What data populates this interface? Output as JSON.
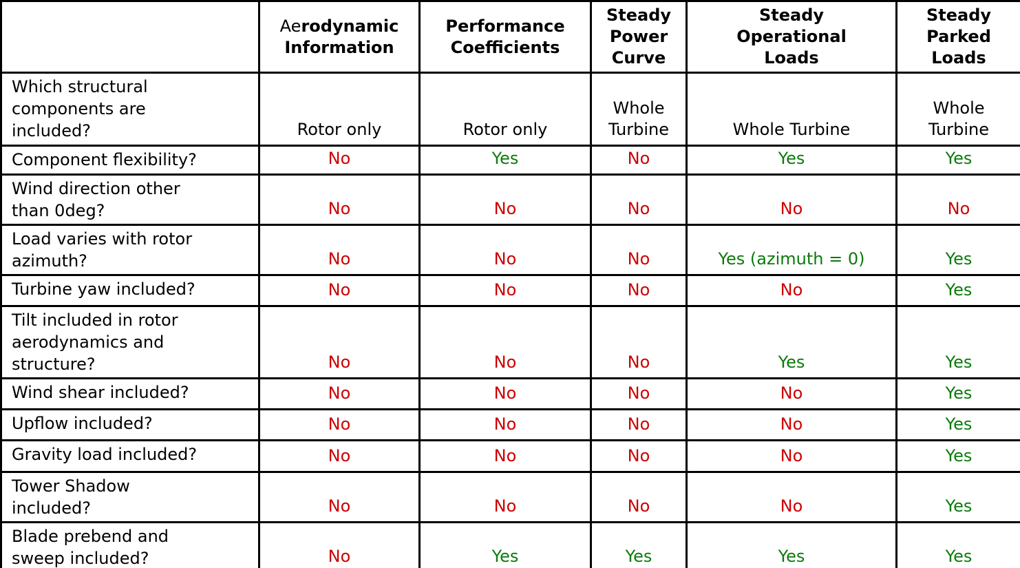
{
  "colors": {
    "yes_text": "#0B7A0B",
    "no_text": "#CC0000",
    "border": "#000000",
    "background": "#FFFFFF"
  },
  "table": {
    "corner_label": "",
    "columns": [
      {
        "prefix": "Ae",
        "rest": "rodynamic\nInformation"
      },
      {
        "label": "Performance\nCoefficients"
      },
      {
        "label": "Steady\nPower\nCurve"
      },
      {
        "label": "Steady\nOperational\nLoads"
      },
      {
        "label": "Steady\nParked\nLoads"
      }
    ],
    "rows": [
      {
        "label": "Which structural\ncomponents are\nincluded?",
        "values": [
          "Rotor only",
          "Rotor only",
          "Whole\nTurbine",
          "Whole Turbine",
          "Whole\nTurbine"
        ]
      },
      {
        "label": "Component flexibility?",
        "values": [
          "No",
          "Yes",
          "No",
          "Yes",
          "Yes"
        ]
      },
      {
        "label": "Wind direction other\nthan 0deg?",
        "values": [
          "No",
          "No",
          "No",
          "No",
          "No"
        ]
      },
      {
        "label": "Load varies with rotor\nazimuth?",
        "values": [
          "No",
          "No",
          "No",
          "Yes (azimuth = 0)",
          "Yes"
        ]
      },
      {
        "label": "Turbine yaw included?",
        "values": [
          "No",
          "No",
          "No",
          "No",
          "Yes"
        ]
      },
      {
        "label": "Tilt included in rotor\naerodynamics and\nstructure?",
        "values": [
          "No",
          "No",
          "No",
          "Yes",
          "Yes"
        ]
      },
      {
        "label": "Wind shear included?",
        "values": [
          "No",
          "No",
          "No",
          "No",
          "Yes"
        ]
      },
      {
        "label": "Upflow included?",
        "values": [
          "No",
          "No",
          "No",
          "No",
          "Yes"
        ]
      },
      {
        "label": "Gravity load included?",
        "values": [
          "No",
          "No",
          "No",
          "No",
          "Yes"
        ]
      },
      {
        "label": "Tower Shadow\nincluded?",
        "values": [
          "No",
          "No",
          "No",
          "No",
          "Yes"
        ]
      },
      {
        "label": "Blade prebend and\nsweep included?",
        "values": [
          "No",
          "Yes",
          "Yes",
          "Yes",
          "Yes"
        ]
      }
    ]
  }
}
